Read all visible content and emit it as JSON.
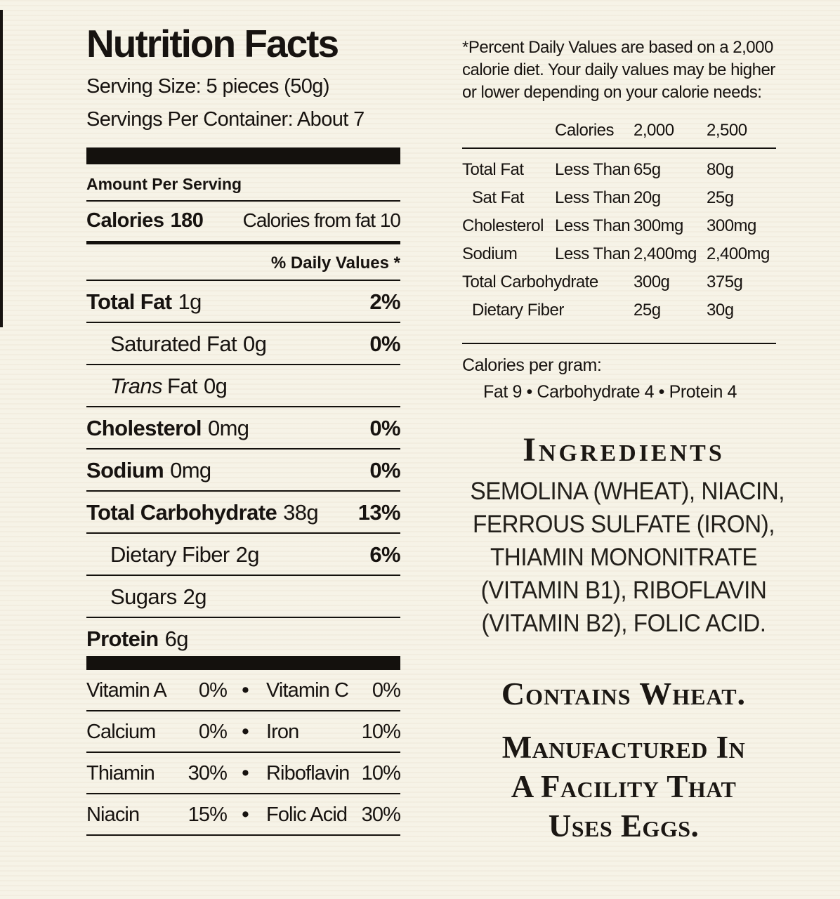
{
  "colors": {
    "background": "#f6f2e6",
    "ink": "#171310"
  },
  "label": {
    "title": "Nutrition Facts",
    "serving_size": "Serving Size: 5 pieces (50g)",
    "servings_per_container": "Servings Per Container: About 7",
    "amount_per_serving": "Amount Per Serving",
    "calories_label": "Calories",
    "calories_value": "180",
    "calories_from_fat": "Calories from fat 10",
    "daily_values_header": "% Daily Values *",
    "bullet": "•",
    "nutrients": [
      {
        "label": "Total Fat",
        "amount": "1g",
        "dv": "2%"
      },
      {
        "label": "Saturated Fat",
        "amount": "0g",
        "dv": "0%"
      },
      {
        "label_italic": "Trans",
        "label": "Fat",
        "amount": "0g",
        "dv": ""
      },
      {
        "label": "Cholesterol",
        "amount": "0mg",
        "dv": "0%"
      },
      {
        "label": "Sodium",
        "amount": "0mg",
        "dv": "0%"
      },
      {
        "label": "Total Carbohydrate",
        "amount": "38g",
        "dv": "13%"
      },
      {
        "label": "Dietary Fiber",
        "amount": "2g",
        "dv": "6%"
      },
      {
        "label": "Sugars",
        "amount": "2g",
        "dv": ""
      },
      {
        "label": "Protein",
        "amount": "6g",
        "dv": ""
      }
    ],
    "vitamins": [
      {
        "left_label": "Vitamin A",
        "left_value": "0%",
        "right_label": "Vitamin C",
        "right_value": "0%"
      },
      {
        "left_label": "Calcium",
        "left_value": "0%",
        "right_label": "Iron",
        "right_value": "10%"
      },
      {
        "left_label": "Thiamin",
        "left_value": "30%",
        "right_label": "Riboflavin",
        "right_value": "10%"
      },
      {
        "left_label": "Niacin",
        "left_value": "15%",
        "right_label": "Folic Acid",
        "right_value": "30%"
      }
    ]
  },
  "footnote": {
    "text": "*Percent Daily Values are based on a 2,000 calorie diet. Your daily values may be higher or lower depending on your calorie needs:",
    "table": {
      "col_calories": "Calories",
      "col_2000": "2,000",
      "col_2500": "2,500",
      "rows": [
        {
          "nutrient": "Total Fat",
          "qualifier": "Less Than",
          "v2000": "65g",
          "v2500": "80g"
        },
        {
          "nutrient": "Sat Fat",
          "qualifier": "Less Than",
          "v2000": "20g",
          "v2500": "25g"
        },
        {
          "nutrient": "Cholesterol",
          "qualifier": "Less Than",
          "v2000": "300mg",
          "v2500": "300mg"
        },
        {
          "nutrient": "Sodium",
          "qualifier": "Less Than",
          "v2000": "2,400mg",
          "v2500": "2,400mg"
        },
        {
          "nutrient": "Total Carbohydrate",
          "qualifier": "",
          "v2000": "300g",
          "v2500": "375g"
        },
        {
          "nutrient": "Dietary Fiber",
          "qualifier": "",
          "v2000": "25g",
          "v2500": "30g"
        }
      ]
    },
    "calories_per_gram_label": "Calories per gram:",
    "calories_per_gram_values": "Fat 9 • Carbohydrate 4 • Protein 4"
  },
  "ingredients": {
    "heading": "Ingredients",
    "lines": [
      "SEMOLINA (WHEAT), NIACIN,",
      "FERROUS SULFATE (IRON),",
      "THIAMIN MONONITRATE",
      "(VITAMIN B1), RIBOFLAVIN",
      "(VITAMIN B2), FOLIC ACID."
    ],
    "contains": "Contains Wheat.",
    "manufactured_lines": [
      "Manufactured In",
      "A Facility That",
      "Uses Eggs."
    ]
  }
}
